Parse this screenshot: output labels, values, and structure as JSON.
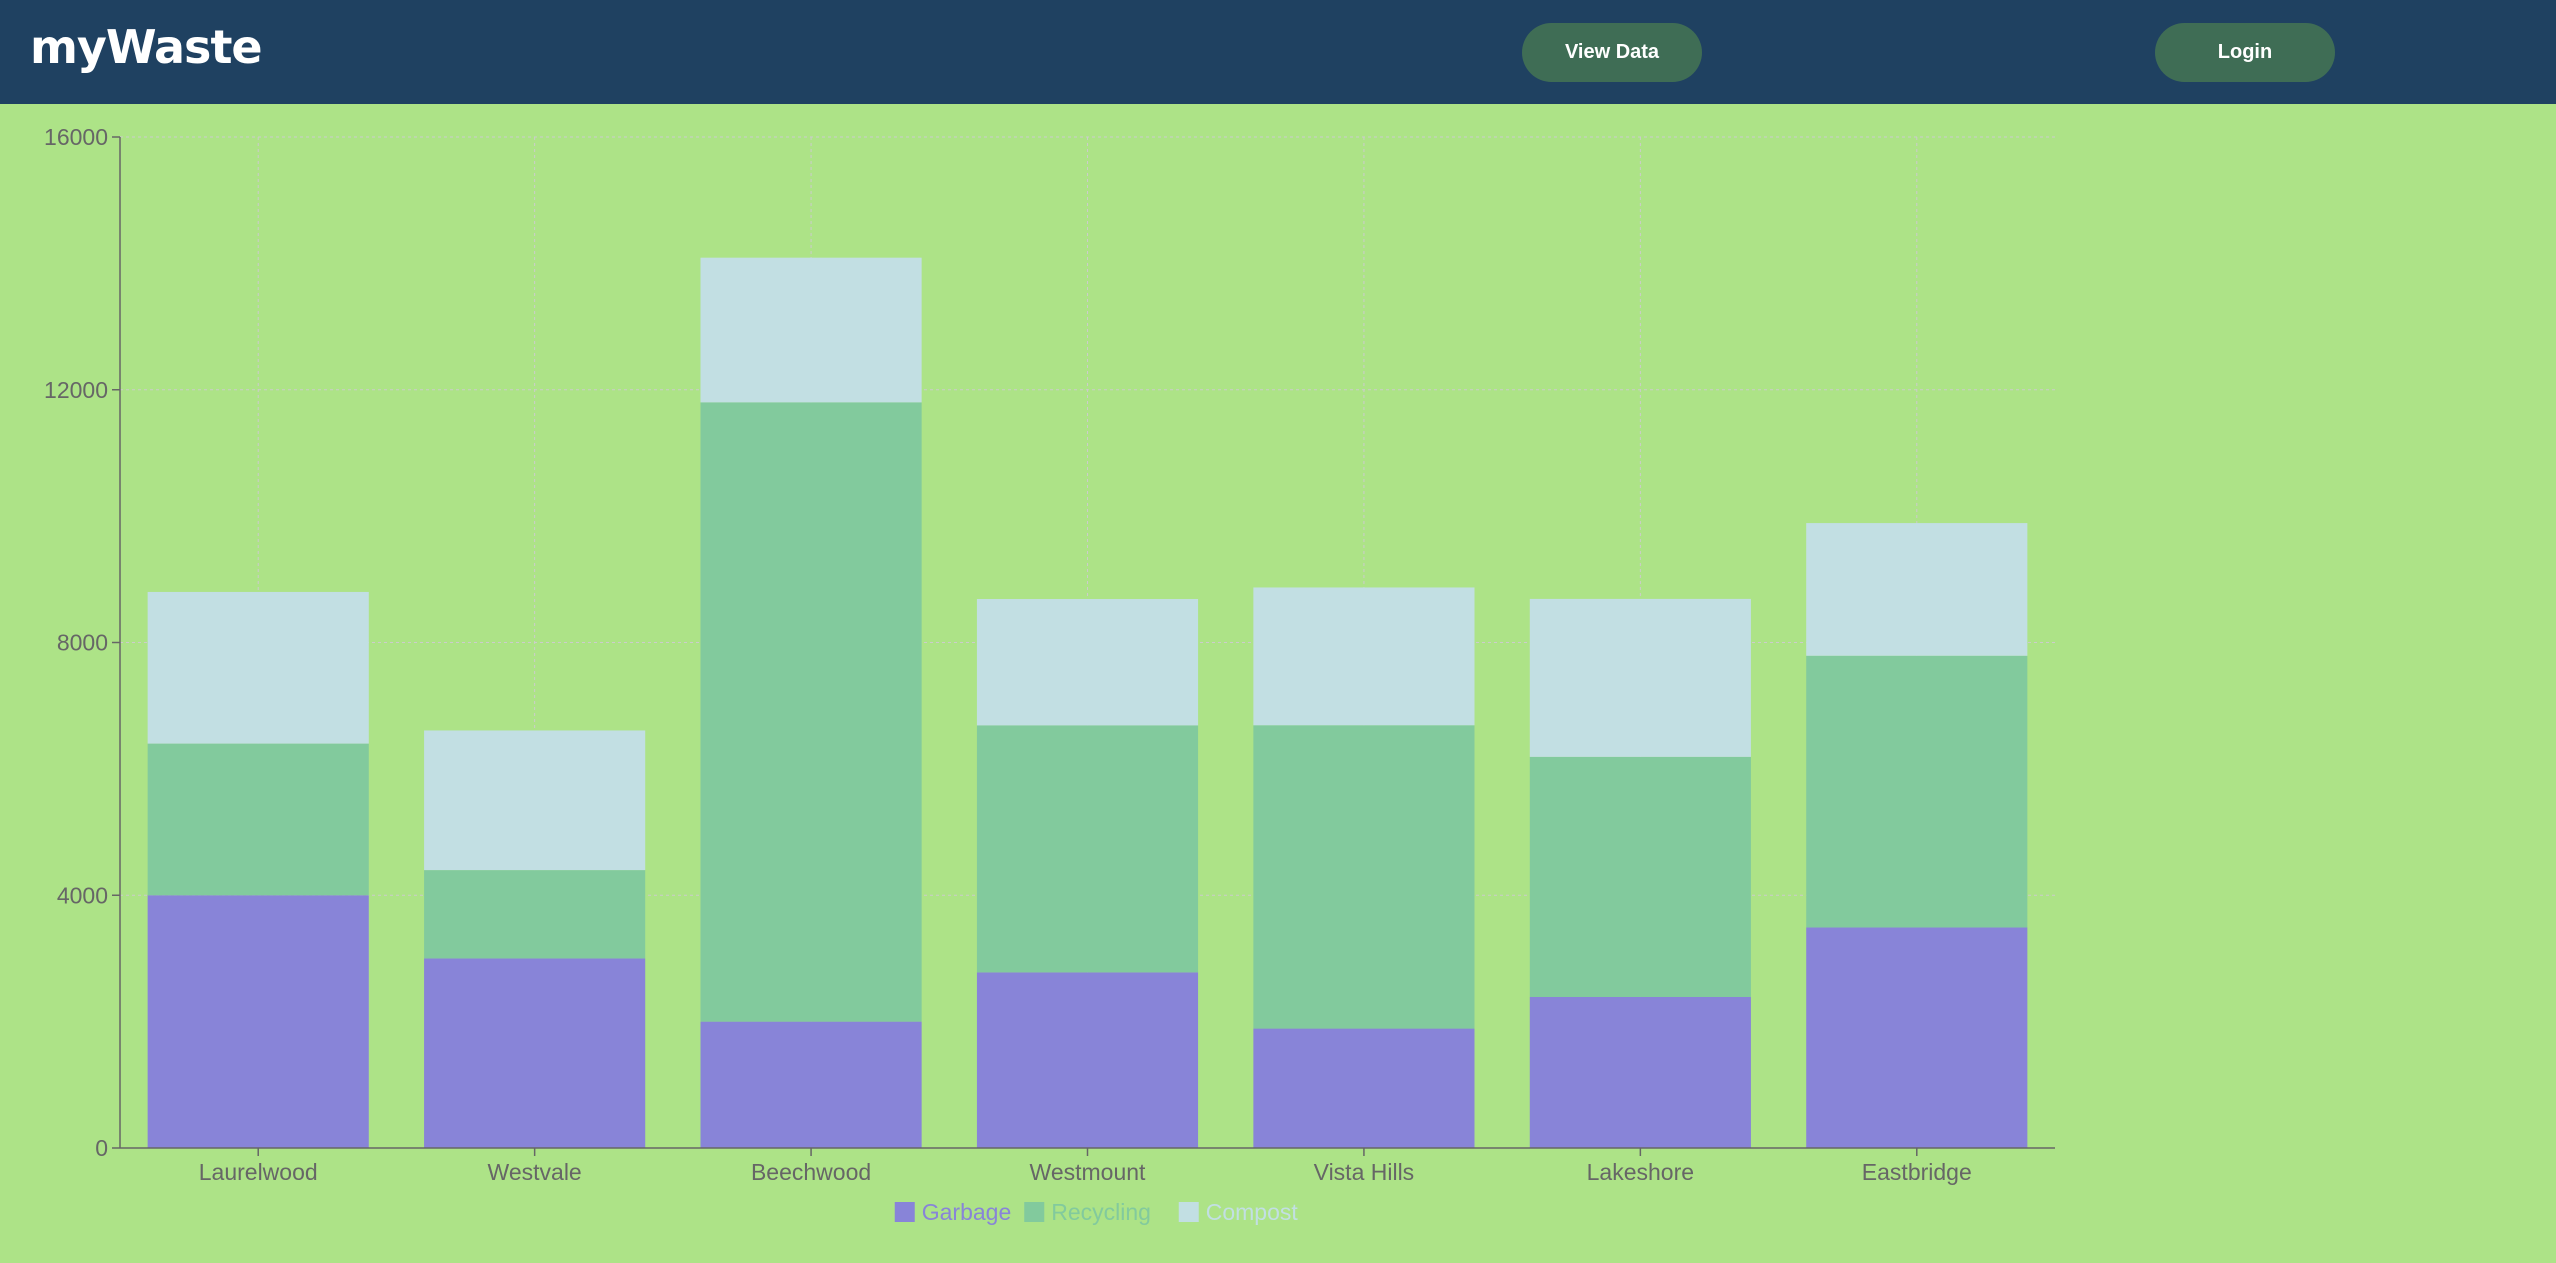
{
  "header": {
    "brand": "myWaste",
    "view_data_label": "View Data",
    "login_label": "Login"
  },
  "colors": {
    "header_bg": "#1f4161",
    "page_bg": "#ade387",
    "button_bg": "#3f6d55",
    "garbage": "#8884d8",
    "recycling": "#82ca9d",
    "compost": "#c2dfe3"
  },
  "chart_data": {
    "type": "bar",
    "stacked": true,
    "categories": [
      "Laurelwood",
      "Westvale",
      "Beechwood",
      "Westmount",
      "Vista Hills",
      "Lakeshore",
      "Eastbridge"
    ],
    "series": [
      {
        "name": "Garbage",
        "color": "#8884d8",
        "values": [
          4000,
          3000,
          2000,
          2780,
          1890,
          2390,
          3490
        ]
      },
      {
        "name": "Recycling",
        "color": "#82ca9d",
        "values": [
          2400,
          1398,
          9800,
          3908,
          4800,
          3800,
          4300
        ]
      },
      {
        "name": "Compost",
        "color": "#c2dfe3",
        "values": [
          2400,
          2210,
          2290,
          2000,
          2181,
          2500,
          2100
        ]
      }
    ],
    "yticks": [
      "0",
      "4000",
      "8000",
      "12000",
      "16000"
    ],
    "ylim": [
      0,
      16000
    ],
    "grid": true,
    "legend_position": "bottom"
  }
}
